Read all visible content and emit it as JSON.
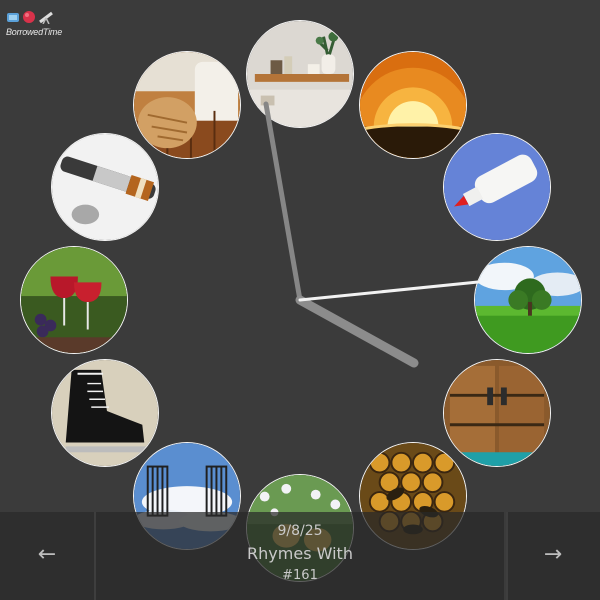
{
  "app": {
    "name": "BorrowedTime",
    "logo_icons": [
      "globe-icon",
      "heart-icon",
      "telescope-icon"
    ]
  },
  "puzzle": {
    "date": "9/8/25",
    "title": "Rhymes With",
    "number": "#161"
  },
  "navigation": {
    "prev_label": "←",
    "next_label": "→"
  },
  "clock": {
    "tiles": [
      {
        "position": 12,
        "subject": "shelf-with-decor"
      },
      {
        "position": 1,
        "subject": "sunrise"
      },
      {
        "position": 2,
        "subject": "glue-bottle"
      },
      {
        "position": 3,
        "subject": "tree-in-field"
      },
      {
        "position": 4,
        "subject": "wooden-doors"
      },
      {
        "position": 5,
        "subject": "honeybees-on-comb"
      },
      {
        "position": 6,
        "subject": "chicks-in-flowers"
      },
      {
        "position": 7,
        "subject": "pearly-gates"
      },
      {
        "position": 8,
        "subject": "ice-skate"
      },
      {
        "position": 9,
        "subject": "wine-glasses"
      },
      {
        "position": 10,
        "subject": "fountain-pen"
      },
      {
        "position": 11,
        "subject": "bread-loaf"
      }
    ]
  },
  "colors": {
    "background": "#3b3b3b",
    "hand_hour": "#8a8a8a",
    "hand_minute": "#7a7a7a",
    "hand_second": "#f2f2f2"
  }
}
